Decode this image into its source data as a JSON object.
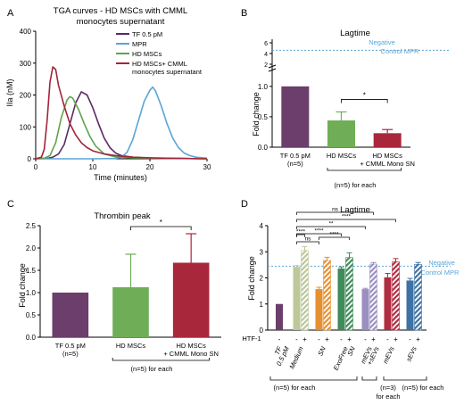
{
  "panels": {
    "A": {
      "letter": "A",
      "title_line1": "TGA curves - HD MSCs with CMML",
      "title_line2": "monocytes supernatant"
    },
    "B": {
      "letter": "B"
    },
    "C": {
      "letter": "C"
    },
    "D": {
      "letter": "D"
    }
  },
  "chart_data": [
    {
      "id": "A",
      "type": "line",
      "title": "TGA curves - HD MSCs with CMML monocytes supernatant",
      "xlabel": "Time (minutes)",
      "ylabel": "IIa (nM)",
      "xlim": [
        0,
        30
      ],
      "ylim": [
        0,
        400
      ],
      "xticks": [
        "0",
        "10",
        "20",
        "30"
      ],
      "yticks": [
        "0",
        "100",
        "200",
        "300",
        "400"
      ],
      "legend_position": "top-right",
      "series": [
        {
          "name": "TF 0.5 pM",
          "color": "#5b2a62",
          "points": [
            [
              0,
              0
            ],
            [
              2,
              1
            ],
            [
              3,
              5
            ],
            [
              4,
              15
            ],
            [
              5,
              45
            ],
            [
              6,
              110
            ],
            [
              7,
              175
            ],
            [
              8,
              210
            ],
            [
              9,
              200
            ],
            [
              10,
              160
            ],
            [
              11,
              110
            ],
            [
              12,
              65
            ],
            [
              13,
              35
            ],
            [
              14,
              18
            ],
            [
              15,
              10
            ],
            [
              17,
              5
            ],
            [
              20,
              2
            ],
            [
              25,
              1
            ],
            [
              30,
              0
            ]
          ]
        },
        {
          "name": "MPR",
          "color": "#5aa5d6",
          "points": [
            [
              0,
              0
            ],
            [
              10,
              0
            ],
            [
              14,
              1
            ],
            [
              15,
              5
            ],
            [
              16,
              20
            ],
            [
              17,
              60
            ],
            [
              18,
              120
            ],
            [
              19,
              180
            ],
            [
              20,
              215
            ],
            [
              20.5,
              225
            ],
            [
              21,
              212
            ],
            [
              22,
              165
            ],
            [
              23,
              110
            ],
            [
              24,
              65
            ],
            [
              25,
              35
            ],
            [
              26,
              18
            ],
            [
              27,
              10
            ],
            [
              28,
              5
            ],
            [
              30,
              2
            ]
          ]
        },
        {
          "name": "HD MSCs",
          "color": "#5ea44c",
          "points": [
            [
              0,
              0
            ],
            [
              1.5,
              2
            ],
            [
              2.5,
              10
            ],
            [
              3.5,
              50
            ],
            [
              4.5,
              130
            ],
            [
              5.5,
              185
            ],
            [
              6,
              195
            ],
            [
              6.5,
              190
            ],
            [
              7.5,
              155
            ],
            [
              8.5,
              110
            ],
            [
              9.5,
              70
            ],
            [
              10.5,
              40
            ],
            [
              12,
              15
            ],
            [
              14,
              6
            ],
            [
              17,
              3
            ],
            [
              20,
              2
            ],
            [
              25,
              1
            ],
            [
              30,
              0
            ]
          ]
        },
        {
          "name": "HD MSCs+ CMML monocytes supernatant",
          "color": "#a3243c",
          "points": [
            [
              0,
              0
            ],
            [
              1,
              5
            ],
            [
              1.5,
              30
            ],
            [
              2,
              120
            ],
            [
              2.5,
              240
            ],
            [
              3,
              288
            ],
            [
              3.5,
              280
            ],
            [
              4,
              230
            ],
            [
              5,
              165
            ],
            [
              6,
              110
            ],
            [
              7,
              75
            ],
            [
              8,
              50
            ],
            [
              9,
              35
            ],
            [
              10,
              25
            ],
            [
              12,
              15
            ],
            [
              14,
              10
            ],
            [
              17,
              5
            ],
            [
              20,
              3
            ],
            [
              25,
              1
            ],
            [
              30,
              0
            ]
          ]
        }
      ]
    },
    {
      "id": "B",
      "type": "bar",
      "title": "Lagtime",
      "ylabel": "Fold change",
      "ylim": [
        0,
        1.1
      ],
      "yticks": [
        "0.0",
        "0.5",
        "1.0"
      ],
      "upper_yticks": [
        "2",
        "4",
        "6"
      ],
      "categories": [
        "TF 0.5 pM",
        "HD MSCs",
        "HD MSCs + CMML Mono SN"
      ],
      "category_sublabels": [
        "(n=5)",
        "",
        ""
      ],
      "values": [
        1.0,
        0.44,
        0.23
      ],
      "errors": [
        0,
        0.14,
        0.06
      ],
      "colors": [
        "#6b3e6b",
        "#6fae56",
        "#a9273b"
      ],
      "group_label": "(n=5) for each",
      "significance": [
        {
          "from": 1,
          "to": 2,
          "label": "*"
        }
      ],
      "reference_line": {
        "label_line1": "Negative",
        "label_line2": "Control MPR",
        "value": 4.6,
        "color": "#5aa5d6"
      }
    },
    {
      "id": "C",
      "type": "bar",
      "title": "Thrombin peak",
      "ylabel": "Fold change",
      "ylim": [
        0,
        2.5
      ],
      "yticks": [
        "0.0",
        "0.5",
        "1.0",
        "1.5",
        "2.0",
        "2.5"
      ],
      "categories": [
        "TF 0.5 pM",
        "HD MSCs",
        "HD MSCs + CMML Mono SN"
      ],
      "category_sublabels": [
        "(n=5)",
        "",
        ""
      ],
      "values": [
        1.0,
        1.12,
        1.67
      ],
      "errors": [
        0,
        0.74,
        0.65
      ],
      "colors": [
        "#6b3e6b",
        "#6fae56",
        "#a9273b"
      ],
      "group_label": "(n=5) for each",
      "significance": [
        {
          "from": 1,
          "to": 2,
          "label": "*"
        }
      ]
    },
    {
      "id": "D",
      "type": "bar",
      "title": "Lagtime",
      "ylabel": "Fold change",
      "ylim": [
        0,
        4
      ],
      "yticks": [
        "0",
        "1",
        "2",
        "3",
        "4"
      ],
      "categories": [
        "TF 0.5 pM",
        "Medium",
        "SN",
        "ExoFree SN",
        "mEVs +sEVs",
        "mEVs",
        "sEVs"
      ],
      "category_colors": [
        "#6b3e6b",
        "#bcc79a",
        "#e6902f",
        "#3f8b5a",
        "#9b8fc0",
        "#b02c40",
        "#3f72a4"
      ],
      "htf_label": "HTF-1",
      "htf_states": [
        "-",
        "+"
      ],
      "series": [
        {
          "name": "-",
          "values": [
            1.0,
            2.42,
            1.57,
            2.36,
            1.57,
            2.02,
            1.9
          ],
          "errors": [
            0,
            0.05,
            0.07,
            0.06,
            0.03,
            0.15,
            0.08
          ]
        },
        {
          "name": "+",
          "values": [
            null,
            3.05,
            2.67,
            2.78,
            2.53,
            2.62,
            2.52
          ],
          "errors": [
            0,
            0.15,
            0.12,
            0.18,
            0.06,
            0.12,
            0.07
          ]
        }
      ],
      "reference_line": {
        "label_line1": "Negative",
        "label_line2": "Control MPR",
        "value": 2.45,
        "color": "#5aa5d6"
      },
      "significance": [
        {
          "label": "ns"
        },
        {
          "label": "****"
        },
        {
          "label": "**"
        },
        {
          "label": "****"
        },
        {
          "label": "ns"
        },
        {
          "label": "****"
        },
        {
          "label": "****"
        }
      ],
      "group_labels": [
        "(n=5) for each",
        "(n=3) for each",
        "(n=5) for each"
      ]
    }
  ]
}
